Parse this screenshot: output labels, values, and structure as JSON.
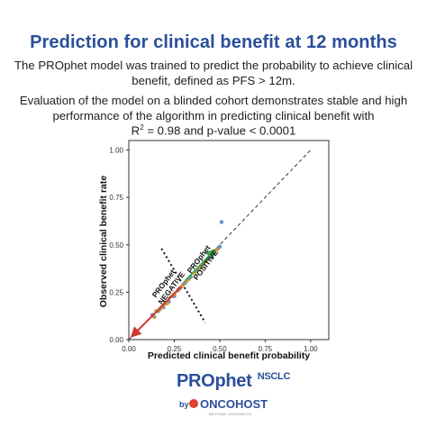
{
  "header": {
    "title": "Prediction for clinical benefit at 12 months",
    "paragraph1": "The PROphet model was trained to predict the probability to achieve clinical benefit, defined as PFS > 12m.",
    "paragraph2": "Evaluation of the model on a blinded cohort demonstrates stable and high performance of the algorithm in predicting clinical benefit with",
    "r_symbol": "R",
    "r_exponent": "2",
    "formula_rest": " = 0.98 and p-value < 0.0001"
  },
  "chart_data": {
    "type": "scatter",
    "xlabel": "Predicted clinical benefit probability",
    "ylabel": "Observed clinical benefit rate",
    "xlim": [
      0,
      1.1
    ],
    "ylim": [
      0,
      1.05
    ],
    "x_ticks": [
      "0.00",
      "0.25",
      "0.50",
      "0.75",
      "1.00"
    ],
    "y_ticks": [
      "0.00",
      "0.25",
      "0.50",
      "0.75",
      "1.00"
    ],
    "x_tick_values": [
      0,
      0.25,
      0.5,
      0.75,
      1.0
    ],
    "y_tick_values": [
      0,
      0.25,
      0.5,
      0.75,
      1.0
    ],
    "reference_line": {
      "style": "dashed",
      "from": [
        0,
        0
      ],
      "to": [
        1.0,
        1.0
      ]
    },
    "series": [
      {
        "color": "#5a86c9",
        "points": [
          [
            0.13,
            0.13
          ],
          [
            0.16,
            0.15
          ],
          [
            0.19,
            0.17
          ],
          [
            0.22,
            0.2
          ],
          [
            0.25,
            0.23
          ],
          [
            0.28,
            0.27
          ],
          [
            0.31,
            0.3
          ],
          [
            0.34,
            0.33
          ],
          [
            0.38,
            0.37
          ],
          [
            0.41,
            0.4
          ],
          [
            0.44,
            0.43
          ],
          [
            0.47,
            0.46
          ],
          [
            0.5,
            0.49
          ],
          [
            0.51,
            0.62
          ]
        ]
      },
      {
        "color": "#9e8e5a",
        "points": [
          [
            0.14,
            0.12
          ],
          [
            0.17,
            0.16
          ],
          [
            0.2,
            0.19
          ],
          [
            0.24,
            0.23
          ],
          [
            0.27,
            0.26
          ],
          [
            0.3,
            0.29
          ],
          [
            0.33,
            0.32
          ],
          [
            0.37,
            0.36
          ],
          [
            0.4,
            0.39
          ],
          [
            0.43,
            0.42
          ],
          [
            0.46,
            0.45
          ],
          [
            0.49,
            0.48
          ]
        ]
      },
      {
        "color": "#e0a032",
        "points": [
          [
            0.15,
            0.15
          ],
          [
            0.18,
            0.17
          ],
          [
            0.21,
            0.19
          ],
          [
            0.25,
            0.24
          ],
          [
            0.29,
            0.28
          ],
          [
            0.32,
            0.31
          ],
          [
            0.36,
            0.35
          ],
          [
            0.39,
            0.38
          ],
          [
            0.42,
            0.41
          ],
          [
            0.45,
            0.44
          ],
          [
            0.48,
            0.47
          ]
        ]
      }
    ],
    "annotations": {
      "negative_line1": "PROphet",
      "negative_line2": "NEGATIVE",
      "positive_line1": "PROphet",
      "positive_line2": "POSITIVE",
      "negative_arrow": {
        "color": "#d2372b",
        "from": [
          0.29,
          0.28
        ],
        "to": [
          0.03,
          0.03
        ]
      },
      "positive_arrow": {
        "color": "#3aa64b",
        "from": [
          0.31,
          0.31
        ],
        "to": [
          0.46,
          0.46
        ]
      },
      "cutoff_line": {
        "style": "dotted",
        "from": [
          0.18,
          0.48
        ],
        "to": [
          0.42,
          0.09
        ]
      }
    }
  },
  "brand": {
    "name": "PROphet",
    "name_suffix": "NSCLC",
    "by": "by",
    "company": "ONCOHOST",
    "tagline": "BEYOND GENOMICS"
  }
}
